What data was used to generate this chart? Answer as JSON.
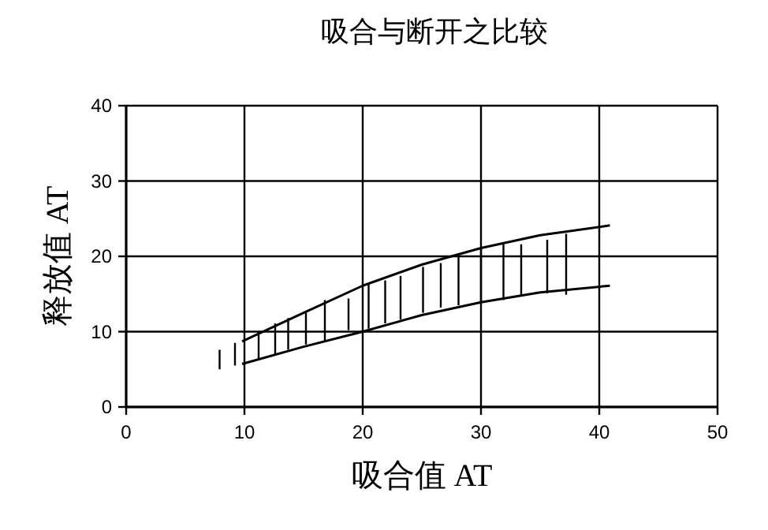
{
  "chart_data": {
    "type": "line",
    "title": "吸合与断开之比较",
    "xlabel": "吸合值 AT",
    "ylabel": "释放值 AT",
    "xlim": [
      0,
      50
    ],
    "xticks": [
      0,
      10,
      20,
      30,
      40,
      50
    ],
    "ylim": [
      0,
      40
    ],
    "yticks": [
      0,
      10,
      20,
      30,
      40
    ],
    "grid": true,
    "marker": "none",
    "line_style": "solid",
    "series": [
      {
        "color": "#000000",
        "x": [
          9.8,
          15,
          20,
          25,
          30,
          35,
          40.9
        ],
        "values": [
          8.7,
          12.5,
          16.1,
          18.9,
          21.1,
          22.8,
          24.1
        ]
      },
      {
        "color": "#000000",
        "x": [
          9.8,
          15,
          20,
          25,
          30,
          35,
          40.9
        ],
        "values": [
          5.7,
          8,
          10,
          12.2,
          13.9,
          15.2,
          16.1
        ]
      },
      {
        "type": "bar",
        "color": "#000000",
        "x": [
          7.9,
          9.2,
          11.2,
          12.6,
          13.7,
          15.2,
          16.8,
          18.8,
          20.5,
          21.9,
          23.2,
          25.1,
          26.6,
          28.1,
          30,
          31.9,
          33.4,
          35.6,
          37.2
        ],
        "base": [
          5.0,
          5.5,
          6.4,
          6.9,
          7.6,
          8.3,
          8.7,
          10.2,
          10.4,
          11.1,
          11.6,
          12.5,
          13.2,
          13.5,
          13.9,
          14.2,
          14.7,
          15.1,
          14.9
        ],
        "values": [
          2.6,
          3.0,
          3.6,
          4.2,
          4.2,
          4.3,
          5.5,
          4.2,
          5.9,
          5.7,
          5.8,
          6.1,
          5.9,
          6.7,
          7.2,
          7.4,
          6.9,
          7.1,
          8.1
        ]
      }
    ]
  }
}
